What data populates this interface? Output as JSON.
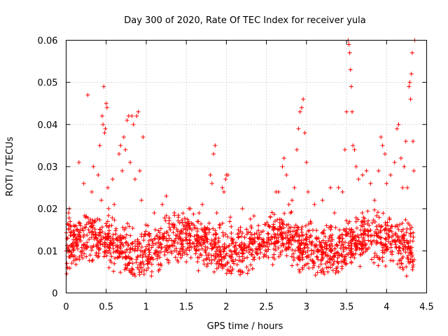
{
  "chart_data": {
    "type": "scatter",
    "title": "Day 300 of 2020, Rate Of TEC Index for receiver yula",
    "xlabel": "GPS time / hours",
    "ylabel": "ROTI / TECUs",
    "xlim": [
      0,
      4.5
    ],
    "ylim": [
      0,
      0.06
    ],
    "x_ticks": [
      0,
      0.5,
      1,
      1.5,
      2,
      2.5,
      3,
      3.5,
      4,
      4.5
    ],
    "x_tick_labels": [
      "0",
      "0.5",
      "1",
      "1.5",
      "2",
      "2.5",
      "3",
      "3.5",
      "4",
      "4.5"
    ],
    "y_ticks": [
      0,
      0.01,
      0.02,
      0.03,
      0.04,
      0.05,
      0.06
    ],
    "y_tick_labels": [
      "0",
      "0.01",
      "0.02",
      "0.03",
      "0.04",
      "0.05",
      "0.06"
    ],
    "grid": true,
    "marker": "+",
    "series": [
      {
        "name": "ROTI",
        "color": "#ff0000",
        "points": [
          [
            0.0,
            0.01
          ],
          [
            0.01,
            0.007
          ],
          [
            0.02,
            0.013
          ],
          [
            0.03,
            0.019
          ],
          [
            0.04,
            0.02
          ],
          [
            0.05,
            0.016
          ],
          [
            0.06,
            0.009
          ],
          [
            0.08,
            0.011
          ],
          [
            0.1,
            0.014
          ],
          [
            0.12,
            0.008
          ],
          [
            0.14,
            0.012
          ],
          [
            0.16,
            0.031
          ],
          [
            0.18,
            0.016
          ],
          [
            0.2,
            0.01
          ],
          [
            0.22,
            0.026
          ],
          [
            0.24,
            0.018
          ],
          [
            0.26,
            0.012
          ],
          [
            0.27,
            0.047
          ],
          [
            0.28,
            0.015
          ],
          [
            0.3,
            0.009
          ],
          [
            0.32,
            0.024
          ],
          [
            0.34,
            0.03
          ],
          [
            0.36,
            0.017
          ],
          [
            0.38,
            0.011
          ],
          [
            0.4,
            0.028
          ],
          [
            0.42,
            0.035
          ],
          [
            0.44,
            0.022
          ],
          [
            0.45,
            0.042
          ],
          [
            0.46,
            0.04
          ],
          [
            0.47,
            0.049
          ],
          [
            0.48,
            0.038
          ],
          [
            0.49,
            0.039
          ],
          [
            0.5,
            0.045
          ],
          [
            0.51,
            0.044
          ],
          [
            0.52,
            0.025
          ],
          [
            0.53,
            0.02
          ],
          [
            0.54,
            0.016
          ],
          [
            0.56,
            0.012
          ],
          [
            0.58,
            0.027
          ],
          [
            0.6,
            0.021
          ],
          [
            0.62,
            0.014
          ],
          [
            0.64,
            0.01
          ],
          [
            0.66,
            0.033
          ],
          [
            0.68,
            0.035
          ],
          [
            0.7,
            0.029
          ],
          [
            0.72,
            0.037
          ],
          [
            0.74,
            0.034
          ],
          [
            0.76,
            0.041
          ],
          [
            0.78,
            0.042
          ],
          [
            0.8,
            0.031
          ],
          [
            0.82,
            0.042
          ],
          [
            0.84,
            0.04
          ],
          [
            0.86,
            0.027
          ],
          [
            0.88,
            0.042
          ],
          [
            0.9,
            0.043
          ],
          [
            0.92,
            0.029
          ],
          [
            0.94,
            0.022
          ],
          [
            0.96,
            0.037
          ],
          [
            0.98,
            0.014
          ],
          [
            1.0,
            0.011
          ],
          [
            1.02,
            0.016
          ],
          [
            1.05,
            0.008
          ],
          [
            1.1,
            0.019
          ],
          [
            1.15,
            0.012
          ],
          [
            1.2,
            0.021
          ],
          [
            1.25,
            0.023
          ],
          [
            1.3,
            0.015
          ],
          [
            1.35,
            0.01
          ],
          [
            1.4,
            0.018
          ],
          [
            1.45,
            0.009
          ],
          [
            1.5,
            0.014
          ],
          [
            1.55,
            0.02
          ],
          [
            1.6,
            0.011
          ],
          [
            1.65,
            0.017
          ],
          [
            1.7,
            0.021
          ],
          [
            1.75,
            0.013
          ],
          [
            1.8,
            0.028
          ],
          [
            1.82,
            0.026
          ],
          [
            1.84,
            0.033
          ],
          [
            1.86,
            0.035
          ],
          [
            1.88,
            0.019
          ],
          [
            1.9,
            0.012
          ],
          [
            1.92,
            0.016
          ],
          [
            1.95,
            0.025
          ],
          [
            1.97,
            0.024
          ],
          [
            1.99,
            0.027
          ],
          [
            2.0,
            0.028
          ],
          [
            2.02,
            0.028
          ],
          [
            2.05,
            0.018
          ],
          [
            2.1,
            0.011
          ],
          [
            2.15,
            0.015
          ],
          [
            2.2,
            0.02
          ],
          [
            2.25,
            0.01
          ],
          [
            2.3,
            0.013
          ],
          [
            2.35,
            0.008
          ],
          [
            2.4,
            0.016
          ],
          [
            2.45,
            0.011
          ],
          [
            2.5,
            0.012
          ],
          [
            2.55,
            0.018
          ],
          [
            2.6,
            0.014
          ],
          [
            2.62,
            0.024
          ],
          [
            2.65,
            0.024
          ],
          [
            2.7,
            0.03
          ],
          [
            2.72,
            0.032
          ],
          [
            2.75,
            0.028
          ],
          [
            2.78,
            0.021
          ],
          [
            2.8,
            0.019
          ],
          [
            2.82,
            0.022
          ],
          [
            2.85,
            0.025
          ],
          [
            2.88,
            0.034
          ],
          [
            2.9,
            0.039
          ],
          [
            2.92,
            0.043
          ],
          [
            2.94,
            0.044
          ],
          [
            2.96,
            0.046
          ],
          [
            2.98,
            0.038
          ],
          [
            3.0,
            0.031
          ],
          [
            3.02,
            0.024
          ],
          [
            3.05,
            0.017
          ],
          [
            3.1,
            0.021
          ],
          [
            3.15,
            0.013
          ],
          [
            3.2,
            0.022
          ],
          [
            3.25,
            0.016
          ],
          [
            3.3,
            0.025
          ],
          [
            3.35,
            0.019
          ],
          [
            3.4,
            0.025
          ],
          [
            3.45,
            0.024
          ],
          [
            3.48,
            0.034
          ],
          [
            3.5,
            0.043
          ],
          [
            3.52,
            0.06
          ],
          [
            3.53,
            0.059
          ],
          [
            3.54,
            0.057
          ],
          [
            3.55,
            0.053
          ],
          [
            3.56,
            0.049
          ],
          [
            3.57,
            0.043
          ],
          [
            3.58,
            0.035
          ],
          [
            3.6,
            0.034
          ],
          [
            3.62,
            0.03
          ],
          [
            3.65,
            0.027
          ],
          [
            3.7,
            0.028
          ],
          [
            3.75,
            0.029
          ],
          [
            3.8,
            0.026
          ],
          [
            3.85,
            0.022
          ],
          [
            3.9,
            0.029
          ],
          [
            3.93,
            0.037
          ],
          [
            3.95,
            0.035
          ],
          [
            3.98,
            0.033
          ],
          [
            4.0,
            0.026
          ],
          [
            4.05,
            0.028
          ],
          [
            4.1,
            0.031
          ],
          [
            4.13,
            0.039
          ],
          [
            4.15,
            0.04
          ],
          [
            4.18,
            0.032
          ],
          [
            4.2,
            0.025
          ],
          [
            4.22,
            0.03
          ],
          [
            4.24,
            0.036
          ],
          [
            4.26,
            0.025
          ],
          [
            4.28,
            0.049
          ],
          [
            4.29,
            0.05
          ],
          [
            4.3,
            0.046
          ],
          [
            4.31,
            0.052
          ],
          [
            4.32,
            0.057
          ],
          [
            4.33,
            0.036
          ],
          [
            4.34,
            0.029
          ],
          [
            4.35,
            0.06
          ],
          [
            4.2,
            0.006
          ],
          [
            4.25,
            0.004
          ],
          [
            4.3,
            0.008
          ],
          [
            3.4,
            0.005
          ],
          [
            3.3,
            0.006
          ],
          [
            2.2,
            0.005
          ]
        ],
        "dense_band": {
          "description": "dense baseline scatter",
          "x_range": [
            0.0,
            4.35
          ],
          "y_range": [
            0.005,
            0.018
          ]
        }
      }
    ]
  }
}
